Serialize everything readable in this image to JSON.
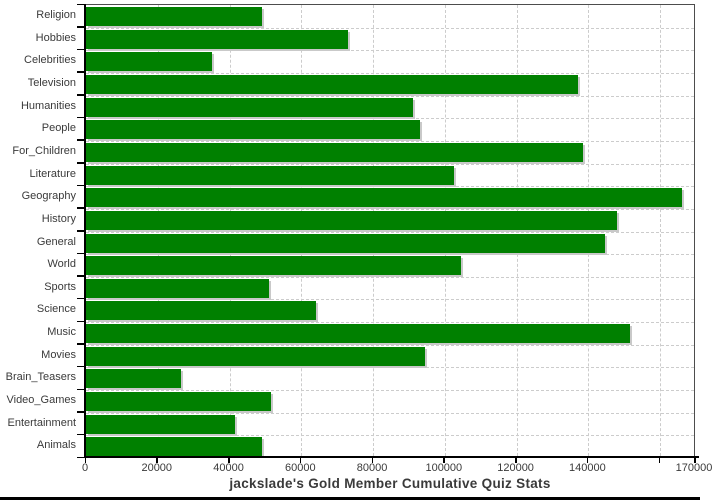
{
  "chart_data": {
    "type": "bar",
    "orientation": "horizontal",
    "title": "jackslade's Gold Member Cumulative Quiz Stats",
    "categories": [
      "Religion",
      "Hobbies",
      "Celebrities",
      "Television",
      "Humanities",
      "People",
      "For_Children",
      "Literature",
      "Geography",
      "History",
      "General",
      "World",
      "Sports",
      "Science",
      "Music",
      "Movies",
      "Brain_Teasers",
      "Video_Games",
      "Entertainment",
      "Animals"
    ],
    "values": [
      49000,
      73000,
      35000,
      137000,
      91000,
      93000,
      138500,
      102500,
      166000,
      148000,
      144500,
      104500,
      51000,
      64000,
      151500,
      94500,
      26500,
      51500,
      41500,
      49000
    ],
    "xlim": [
      0,
      170000
    ],
    "x_tick_interval": 20000,
    "x_tick_labels": [
      "0",
      "20000",
      "40000",
      "60000",
      "80000",
      "100000",
      "120000",
      "140000"
    ],
    "x_axis_end_label": "170000",
    "grid": "dashed",
    "legend": "none",
    "bar_color": "#008000",
    "bar_shadow_color": "#c9c9c9",
    "gridline_color": "#cccccc",
    "axis_color": "#000000",
    "plot_border_color": "#4d4d4d",
    "text_color": "#3a3a3a"
  }
}
